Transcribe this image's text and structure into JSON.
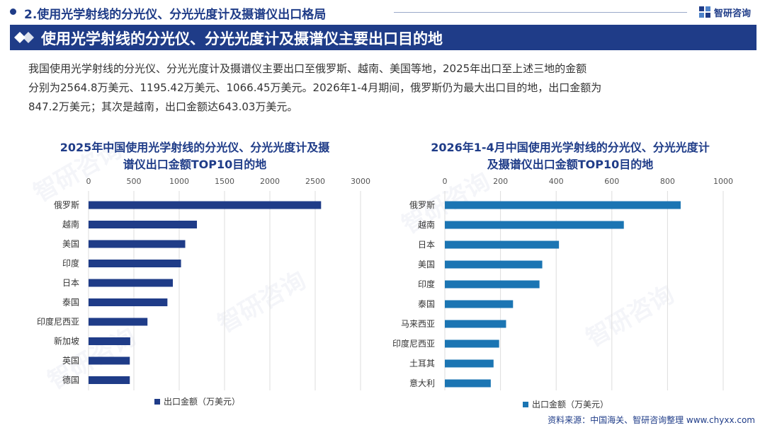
{
  "header": {
    "section_title": "2.使用光学射线的分光仪、分光光度计及摄谱仪出口格局",
    "brand": "智研咨询"
  },
  "banner": {
    "title": "使用光学射线的分光仪、分光光度计及摄谱仪主要出口目的地"
  },
  "intro": {
    "line1": "我国使用光学射线的分光仪、分光光度计及摄谱仪主要出口至俄罗斯、越南、美国等地，2025年出口至上述三地的金额",
    "line2": "分别为2564.8万美元、1195.42万美元、1066.45万美元。2026年1-4月期间，俄罗斯仍为最大出口目的地，出口金额为",
    "line3": "847.2万美元；其次是越南，出口金额达643.03万美元。"
  },
  "colors": {
    "brand": "#1f3c88",
    "left_bar": "#1f3c88",
    "right_bar": "#1b75b3",
    "grid": "#dddddd"
  },
  "chart_data": [
    {
      "type": "bar",
      "orientation": "horizontal",
      "title_line1": "2025年中国使用光学射线的分光仪、分光光度计及摄",
      "title_line2": "谱仪出口金额TOP10目的地",
      "categories": [
        "俄罗斯",
        "越南",
        "美国",
        "印度",
        "日本",
        "泰国",
        "印度尼西亚",
        "新加坡",
        "英国",
        "德国"
      ],
      "series": [
        {
          "name": "出口金额（万美元）",
          "values": [
            2564.8,
            1195.42,
            1066.45,
            1020,
            930,
            870,
            650,
            460,
            455,
            455
          ]
        }
      ],
      "xlim": [
        0,
        3000
      ],
      "ticks": [
        0,
        500,
        1000,
        1500,
        2000,
        2500,
        3000
      ],
      "grid": true,
      "legend_position": "bottom"
    },
    {
      "type": "bar",
      "orientation": "horizontal",
      "title_line1": "2026年1-4月中国使用光学射线的分光仪、分光光度计",
      "title_line2": "及摄谱仪出口金额TOP10目的地",
      "categories": [
        "俄罗斯",
        "越南",
        "日本",
        "美国",
        "印度",
        "泰国",
        "马来西亚",
        "印度尼西亚",
        "土耳其",
        "意大利"
      ],
      "series": [
        {
          "name": "出口金额（万美元）",
          "values": [
            847.2,
            643.03,
            410,
            350,
            340,
            245,
            220,
            195,
            175,
            165
          ]
        }
      ],
      "xlim": [
        0,
        1000
      ],
      "ticks": [
        0,
        200,
        400,
        600,
        800,
        1000
      ],
      "grid": true,
      "legend_position": "bottom"
    }
  ],
  "footer": {
    "source": "资料来源：中国海关、智研咨询整理   www.chyxx.com"
  }
}
